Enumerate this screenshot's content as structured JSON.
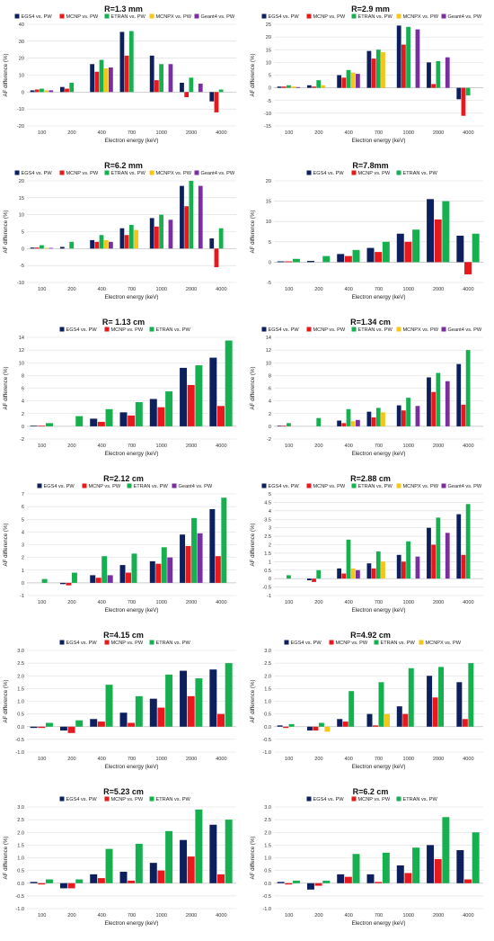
{
  "figure": {
    "series_styles": {
      "EGS4 vs. PW": "#0d1f5c",
      "MCNP vs. PW": "#e8191c",
      "ETRAN vs. PW": "#16b050",
      "MCNPX vs. PW": "#f5c518",
      "Geant4 vs. PW": "#7a2fa0"
    }
  },
  "chart_data": [
    {
      "type": "bar",
      "title": "R=1.3 mm",
      "categories": [
        "100",
        "200",
        "400",
        "700",
        "1000",
        "2000",
        "4000"
      ],
      "xlabel": "Electron energy (keV)",
      "ylabel": "AF difference (%)",
      "ylim": [
        -20,
        40
      ],
      "yticks": [
        -20,
        -10,
        0,
        10,
        20,
        30,
        40
      ],
      "grid": true,
      "legend": "top",
      "series": [
        {
          "name": "EGS4 vs. PW",
          "values": [
            1,
            3,
            16.5,
            35.5,
            21.5,
            5.5,
            -5.5
          ]
        },
        {
          "name": "MCNP vs. PW",
          "values": [
            1.5,
            2,
            12,
            21.5,
            7,
            -3,
            -12
          ]
        },
        {
          "name": "ETRAN vs. PW",
          "values": [
            2,
            5.5,
            19,
            36,
            16.5,
            8.5,
            1.5
          ]
        },
        {
          "name": "MCNPX vs. PW",
          "values": [
            1,
            0,
            14,
            0,
            0,
            0,
            0
          ]
        },
        {
          "name": "Geant4 vs. PW",
          "values": [
            1,
            0,
            14.5,
            0,
            16.5,
            5,
            0
          ]
        }
      ]
    },
    {
      "type": "bar",
      "title": "R=2.9 mm",
      "categories": [
        "100",
        "200",
        "400",
        "700",
        "1000",
        "2000",
        "4000"
      ],
      "xlabel": "Electron energy (keV)",
      "ylabel": "AF difference (%)",
      "ylim": [
        -15,
        25
      ],
      "yticks": [
        -15,
        -10,
        -5,
        0,
        5,
        10,
        15,
        20,
        25
      ],
      "grid": true,
      "legend": "top",
      "series": [
        {
          "name": "EGS4 vs. PW",
          "values": [
            0.5,
            1,
            5,
            14.5,
            24.5,
            10,
            -4.5
          ]
        },
        {
          "name": "MCNP vs. PW",
          "values": [
            0.5,
            0.5,
            4,
            11.5,
            17,
            1.5,
            -11
          ]
        },
        {
          "name": "ETRAN vs. PW",
          "values": [
            1,
            3,
            7,
            15,
            24,
            10.5,
            -3
          ]
        },
        {
          "name": "MCNPX vs. PW",
          "values": [
            0.5,
            1,
            6,
            14,
            0,
            0,
            0
          ]
        },
        {
          "name": "Geant4 vs. PW",
          "values": [
            0.3,
            0,
            5.5,
            0,
            23,
            12,
            0
          ]
        }
      ]
    },
    {
      "type": "bar",
      "title": "R=6.2 mm",
      "categories": [
        "100",
        "200",
        "400",
        "700",
        "1000",
        "2000",
        "4000"
      ],
      "xlabel": "Electron energy (keV)",
      "ylabel": "AF difference (%)",
      "ylim": [
        -10,
        20
      ],
      "yticks": [
        -10,
        -5,
        0,
        5,
        10,
        15,
        20
      ],
      "grid": true,
      "legend": "top",
      "series": [
        {
          "name": "EGS4 vs. PW",
          "values": [
            0.3,
            0.5,
            2.5,
            6,
            9,
            18.5,
            3
          ]
        },
        {
          "name": "MCNP vs. PW",
          "values": [
            0.3,
            0,
            2,
            4,
            6.5,
            12.5,
            -5.5
          ]
        },
        {
          "name": "ETRAN vs. PW",
          "values": [
            1,
            2,
            4,
            7,
            10,
            20,
            6
          ]
        },
        {
          "name": "MCNPX vs. PW",
          "values": [
            0.2,
            0,
            2.5,
            5.5,
            0,
            0,
            0
          ]
        },
        {
          "name": "Geant4 vs. PW",
          "values": [
            0.2,
            0,
            2,
            0,
            8.5,
            18.5,
            0
          ]
        }
      ]
    },
    {
      "type": "bar",
      "title": "R=7.8mm",
      "categories": [
        "100",
        "200",
        "400",
        "700",
        "1000",
        "2000",
        "4000"
      ],
      "xlabel": "Electron energy (keV)",
      "ylabel": "AF difference (%)",
      "ylim": [
        -5,
        20
      ],
      "yticks": [
        -5,
        0,
        5,
        10,
        15,
        20
      ],
      "grid": true,
      "legend": "top",
      "series": [
        {
          "name": "EGS4 vs. PW",
          "values": [
            0.2,
            0.3,
            2,
            3.5,
            7,
            15.5,
            6.5
          ]
        },
        {
          "name": "MCNP vs. PW",
          "values": [
            0.2,
            0,
            1.5,
            2.5,
            5,
            10.5,
            -3
          ]
        },
        {
          "name": "ETRAN vs. PW",
          "values": [
            0.8,
            1.5,
            3,
            5,
            8,
            15,
            7
          ]
        }
      ]
    },
    {
      "type": "bar",
      "title": "R= 1.13 cm",
      "categories": [
        "100",
        "200",
        "400",
        "700",
        "1000",
        "2000",
        "4000"
      ],
      "xlabel": "Electron energy (keV)",
      "ylabel": "AF difference (%)",
      "ylim": [
        -2,
        14
      ],
      "yticks": [
        -2,
        0,
        2,
        4,
        6,
        8,
        10,
        12,
        14
      ],
      "grid": true,
      "legend": "top",
      "series": [
        {
          "name": "EGS4 vs. PW",
          "values": [
            0.1,
            0,
            1.2,
            2.2,
            4.3,
            9.2,
            10.8
          ]
        },
        {
          "name": "MCNP vs. PW",
          "values": [
            0.1,
            0,
            0.7,
            1.7,
            3,
            6.5,
            3.2
          ]
        },
        {
          "name": "ETRAN vs. PW",
          "values": [
            0.5,
            1.6,
            2.7,
            3.8,
            5.5,
            9.6,
            13.5
          ]
        }
      ]
    },
    {
      "type": "bar",
      "title": "R=1.34 cm",
      "categories": [
        "100",
        "200",
        "400",
        "700",
        "1000",
        "2000",
        "4000"
      ],
      "xlabel": "Electron energy (keV)",
      "ylabel": "AF difference (%)",
      "ylim": [
        -2,
        14
      ],
      "yticks": [
        -2,
        0,
        2,
        4,
        6,
        8,
        10,
        12,
        14
      ],
      "grid": true,
      "legend": "top",
      "series": [
        {
          "name": "EGS4 vs. PW",
          "values": [
            0.1,
            0,
            0.9,
            2.3,
            3.3,
            7.7,
            9.8
          ]
        },
        {
          "name": "MCNP vs. PW",
          "values": [
            0.1,
            0,
            0.5,
            1.4,
            2.5,
            5.4,
            3.4
          ]
        },
        {
          "name": "ETRAN vs. PW",
          "values": [
            0.5,
            1.3,
            2.7,
            2.9,
            4.5,
            8.4,
            12
          ]
        },
        {
          "name": "MCNPX vs. PW",
          "values": [
            0,
            0,
            0.8,
            2.2,
            0,
            0,
            0
          ]
        },
        {
          "name": "Geant4 vs. PW",
          "values": [
            0,
            0,
            1,
            0,
            3.2,
            7.1,
            0
          ]
        }
      ]
    },
    {
      "type": "bar",
      "title": "R=2.12 cm",
      "categories": [
        "100",
        "200",
        "400",
        "700",
        "1000",
        "2000",
        "4000"
      ],
      "xlabel": "Electron energy (keV)",
      "ylabel": "AF difference (%)",
      "ylim": [
        -1,
        7
      ],
      "yticks": [
        -1,
        0,
        1,
        2,
        3,
        4,
        5,
        6,
        7
      ],
      "grid": true,
      "legend": "top",
      "series": [
        {
          "name": "EGS4 vs. PW",
          "values": [
            0,
            -0.1,
            0.6,
            1.4,
            1.7,
            3.8,
            5.8
          ]
        },
        {
          "name": "MCNP vs. PW",
          "values": [
            0,
            -0.2,
            0.4,
            0.8,
            1.5,
            2.9,
            2.1
          ]
        },
        {
          "name": "ETRAN vs. PW",
          "values": [
            0.3,
            0.8,
            2.1,
            2.3,
            2.8,
            5.1,
            6.7
          ]
        },
        {
          "name": "Geant4 vs. PW",
          "values": [
            0,
            0,
            0.6,
            0,
            2,
            3.9,
            0
          ]
        }
      ]
    },
    {
      "type": "bar",
      "title": "R=2.88 cm",
      "categories": [
        "100",
        "200",
        "400",
        "700",
        "1000",
        "2000",
        "4000"
      ],
      "xlabel": "Electron energy (keV)",
      "ylabel": "AF difference (%)",
      "ylim": [
        -1,
        5
      ],
      "yticks": [
        -1,
        -0.5,
        0,
        0.5,
        1,
        1.5,
        2,
        2.5,
        3,
        3.5,
        4,
        4.5,
        5
      ],
      "grid": true,
      "legend": "top",
      "series": [
        {
          "name": "EGS4 vs. PW",
          "values": [
            0,
            -0.1,
            0.6,
            0.9,
            1.4,
            3,
            3.8
          ]
        },
        {
          "name": "MCNP vs. PW",
          "values": [
            0,
            -0.2,
            0.3,
            0.6,
            1,
            2,
            1.4
          ]
        },
        {
          "name": "ETRAN vs. PW",
          "values": [
            0.2,
            0.5,
            2.3,
            1.6,
            2.2,
            3.6,
            4.4
          ]
        },
        {
          "name": "MCNPX vs. PW",
          "values": [
            0,
            0,
            0.6,
            1,
            0,
            0,
            0
          ]
        },
        {
          "name": "Geant4 vs. PW",
          "values": [
            0,
            0,
            0.5,
            0,
            1.3,
            2.7,
            0
          ]
        }
      ]
    },
    {
      "type": "bar",
      "title": "R=4.15 cm",
      "categories": [
        "100",
        "200",
        "400",
        "700",
        "1000",
        "2000",
        "4000"
      ],
      "xlabel": "Electron energy (keV)",
      "ylabel": "AF difference (%)",
      "ylim": [
        -1.0,
        3.0
      ],
      "yticks": [
        -1.0,
        -0.5,
        0.0,
        0.5,
        1.0,
        1.5,
        2.0,
        2.5,
        3.0
      ],
      "tick_decimals": 1,
      "grid": true,
      "legend": "top",
      "series": [
        {
          "name": "EGS4 vs. PW",
          "values": [
            -0.05,
            -0.15,
            0.3,
            0.55,
            1.1,
            2.2,
            2.25
          ]
        },
        {
          "name": "MCNP vs. PW",
          "values": [
            -0.05,
            -0.25,
            0.2,
            0.15,
            0.75,
            1.2,
            0.5
          ]
        },
        {
          "name": "ETRAN vs. PW",
          "values": [
            0.15,
            0.25,
            1.65,
            1.2,
            2.05,
            1.9,
            2.5
          ]
        }
      ]
    },
    {
      "type": "bar",
      "title": "R=4.92 cm",
      "categories": [
        "100",
        "200",
        "400",
        "700",
        "1000",
        "2000",
        "4000"
      ],
      "xlabel": "Electron energy (keV)",
      "ylabel": "AF difference (%)",
      "ylim": [
        -1.0,
        3.0
      ],
      "yticks": [
        -1.0,
        -0.5,
        0.0,
        0.5,
        1.0,
        1.5,
        2.0,
        2.5,
        3.0
      ],
      "tick_decimals": 1,
      "grid": true,
      "legend": "top",
      "series": [
        {
          "name": "EGS4 vs. PW",
          "values": [
            0.05,
            -0.15,
            0.3,
            0.5,
            0.8,
            2,
            1.75
          ]
        },
        {
          "name": "MCNP vs. PW",
          "values": [
            -0.05,
            -0.15,
            0.2,
            0.05,
            0.5,
            1.15,
            0.3
          ]
        },
        {
          "name": "ETRAN vs. PW",
          "values": [
            0.1,
            0.15,
            1.4,
            1.75,
            2.3,
            2.35,
            2.5
          ]
        },
        {
          "name": "MCNPX vs. PW",
          "values": [
            0,
            -0.2,
            0,
            0.5,
            0,
            0,
            0
          ]
        }
      ]
    },
    {
      "type": "bar",
      "title": "R=5.23 cm",
      "categories": [
        "100",
        "200",
        "400",
        "700",
        "1000",
        "2000",
        "4000"
      ],
      "xlabel": "Electron energy (keV)",
      "ylabel": "AF difference (%)",
      "ylim": [
        -1.0,
        3.0
      ],
      "yticks": [
        -1.0,
        -0.5,
        0.0,
        0.5,
        1.0,
        1.5,
        2.0,
        2.5,
        3.0
      ],
      "tick_decimals": 1,
      "grid": true,
      "legend": "top",
      "series": [
        {
          "name": "EGS4 vs. PW",
          "values": [
            0.05,
            -0.2,
            0.35,
            0.45,
            0.8,
            1.7,
            2.3
          ]
        },
        {
          "name": "MCNP vs. PW",
          "values": [
            -0.05,
            -0.2,
            0.2,
            0.1,
            0.5,
            1.05,
            0.35
          ]
        },
        {
          "name": "ETRAN vs. PW",
          "values": [
            0.15,
            0.15,
            1.35,
            1.55,
            2.05,
            2.9,
            2.5
          ]
        }
      ]
    },
    {
      "type": "bar",
      "title": "R=6.2 cm",
      "categories": [
        "100",
        "200",
        "400",
        "700",
        "1000",
        "2000",
        "4000"
      ],
      "xlabel": "Electron energy (keV)",
      "ylabel": "AF difference (%)",
      "ylim": [
        -1.0,
        3.0
      ],
      "yticks": [
        -1.0,
        -0.5,
        0.0,
        0.5,
        1.0,
        1.5,
        2.0,
        2.5,
        3.0
      ],
      "tick_decimals": 1,
      "grid": true,
      "legend": "top",
      "series": [
        {
          "name": "EGS4 vs. PW",
          "values": [
            0.05,
            -0.25,
            0.35,
            0.35,
            0.7,
            1.5,
            1.3
          ]
        },
        {
          "name": "MCNP vs. PW",
          "values": [
            -0.05,
            -0.1,
            0.25,
            0.05,
            0.4,
            0.95,
            0.15
          ]
        },
        {
          "name": "ETRAN vs. PW",
          "values": [
            0.1,
            0.1,
            1.15,
            1.2,
            1.4,
            2.6,
            2
          ]
        }
      ]
    }
  ]
}
